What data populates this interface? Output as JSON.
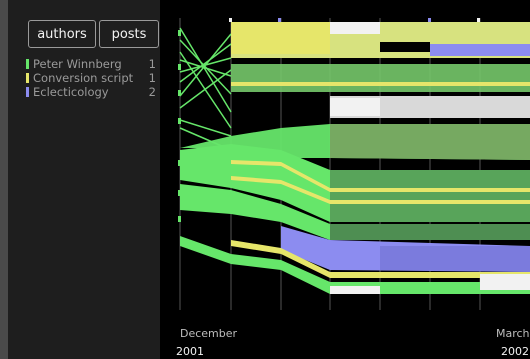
{
  "buttons": {
    "authors": "authors",
    "posts": "posts"
  },
  "legend": [
    {
      "name": "Peter Winnberg",
      "count": "1",
      "color": "#66e66a"
    },
    {
      "name": "Conversion script",
      "count": "1",
      "color": "#e6e66a"
    },
    {
      "name": "Eclecticology",
      "count": "2",
      "color": "#8c8cf0"
    }
  ],
  "timeline": {
    "labels": [
      {
        "month": "December",
        "year": "2001"
      },
      {
        "month": "March",
        "year": "2002"
      }
    ]
  },
  "colors": {
    "background": "#000000",
    "sidebar": "#1e1e1e",
    "green": "#66e66a",
    "yellow": "#e6e66a",
    "purple": "#8c8cf0",
    "white": "#f2f2f2"
  }
}
